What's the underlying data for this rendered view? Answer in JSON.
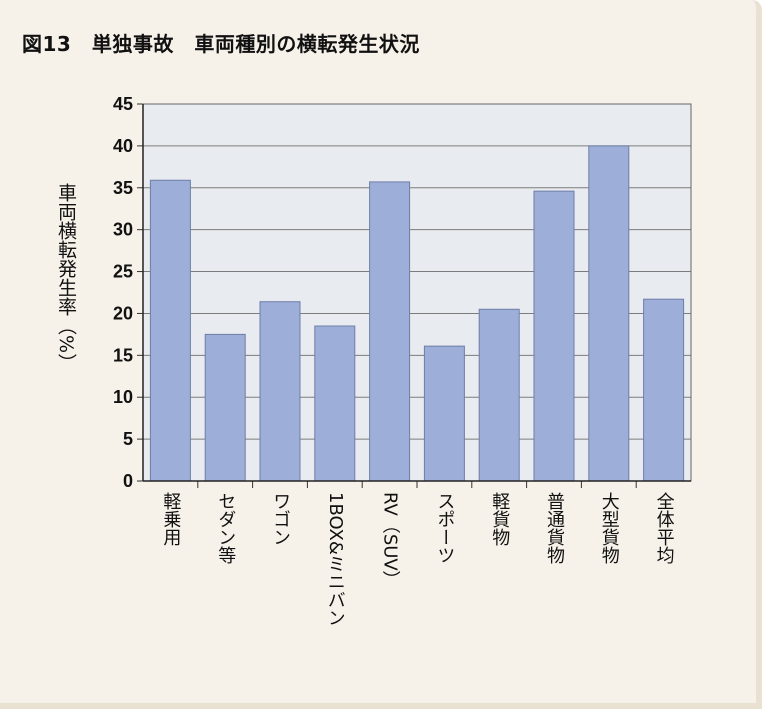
{
  "chart_data": {
    "type": "bar",
    "title": "図13　単独事故　車両種別の横転発生状況",
    "xlabel": "",
    "ylabel": "車両横転発生率（%）",
    "categories": [
      "軽乗用",
      "セダン等",
      "ワゴン",
      "1BOX&ミニバン",
      "RV（SUV）",
      "スポーツ",
      "軽貨物",
      "普通貨物",
      "大型貨物",
      "全体平均"
    ],
    "values": [
      35.9,
      17.5,
      21.4,
      18.5,
      35.7,
      16.1,
      20.5,
      34.6,
      40.0,
      21.7
    ],
    "ylim": [
      0,
      45
    ],
    "yticks": [
      0,
      5,
      10,
      15,
      20,
      25,
      30,
      35,
      40,
      45
    ],
    "grid": true,
    "colors": {
      "bar": "#9dafd8",
      "bar_stroke": "#6f7ea8",
      "plot_bg": "#e8ebef",
      "grid": "#7c7c7c"
    }
  }
}
